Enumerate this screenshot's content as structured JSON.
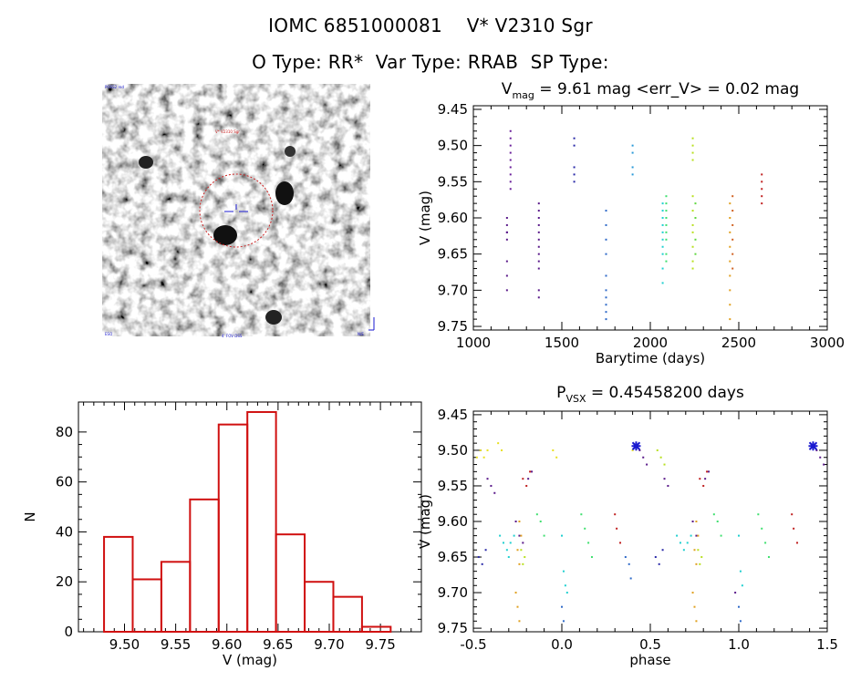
{
  "header": {
    "line1_id": "IOMC 6851000081",
    "line1_name": "V* V2310 Sgr",
    "line2": "O Type: RR*  Var Type: RRAB  SP Type:"
  },
  "image_panel": {
    "corner_tl": "POSS2 red",
    "corner_bl": "ESO",
    "label_top": "V* V2310 Sgr",
    "label_bottom": "4' FOV DSS",
    "corner_br": "N/E"
  },
  "colors": {
    "axis": "#000000",
    "histogram": "#d01010",
    "circle": "#cc2222",
    "star_marker": "#1a1ad0"
  },
  "chart_data": [
    {
      "type": "scatter",
      "title_main": "V",
      "title_sub": "mag",
      "title_rest": " = 9.61 mag <err_V> = 0.02 mag",
      "xlabel": "Barytime (days)",
      "ylabel": "V (mag)",
      "xlim": [
        1000,
        3000
      ],
      "ylim": [
        9.755,
        9.445
      ],
      "xticks": [
        1000,
        1500,
        2000,
        2500,
        3000
      ],
      "yticks": [
        9.45,
        9.5,
        9.55,
        9.6,
        9.65,
        9.7,
        9.75
      ],
      "clusters": [
        {
          "x": 1190,
          "color": "#5a1a8a",
          "values": [
            9.6,
            9.61,
            9.62,
            9.63,
            9.66,
            9.68,
            9.7,
            9.62
          ]
        },
        {
          "x": 1210,
          "color": "#6a1f9a",
          "values": [
            9.48,
            9.49,
            9.5,
            9.51,
            9.52,
            9.53,
            9.54,
            9.55,
            9.56
          ]
        },
        {
          "x": 1370,
          "color": "#5a1a8a",
          "values": [
            9.58,
            9.59,
            9.6,
            9.61,
            9.62,
            9.63,
            9.64,
            9.65,
            9.66,
            9.67,
            9.7,
            9.71
          ]
        },
        {
          "x": 1570,
          "color": "#2a2aa8",
          "values": [
            9.49,
            9.5,
            9.53,
            9.54,
            9.55
          ]
        },
        {
          "x": 1750,
          "color": "#2f6ac8",
          "values": [
            9.59,
            9.61,
            9.63,
            9.65,
            9.68,
            9.7,
            9.71,
            9.72,
            9.73,
            9.74
          ]
        },
        {
          "x": 1900,
          "color": "#2a9ad8",
          "values": [
            9.5,
            9.51,
            9.53,
            9.54
          ]
        },
        {
          "x": 2070,
          "color": "#20d0d0",
          "values": [
            9.58,
            9.59,
            9.6,
            9.61,
            9.62,
            9.63,
            9.64,
            9.65,
            9.67,
            9.69
          ]
        },
        {
          "x": 2090,
          "color": "#40e070",
          "values": [
            9.57,
            9.58,
            9.59,
            9.6,
            9.61,
            9.62,
            9.63,
            9.65,
            9.66
          ]
        },
        {
          "x": 2240,
          "color": "#b8e020",
          "values": [
            9.49,
            9.5,
            9.51,
            9.52,
            9.57,
            9.59,
            9.61,
            9.62,
            9.64,
            9.66,
            9.67
          ]
        },
        {
          "x": 2255,
          "color": "#60d840",
          "values": [
            9.58,
            9.6,
            9.63,
            9.65
          ]
        },
        {
          "x": 2450,
          "color": "#e0a020",
          "values": [
            9.58,
            9.6,
            9.62,
            9.64,
            9.66,
            9.68,
            9.7,
            9.72,
            9.74
          ]
        },
        {
          "x": 2465,
          "color": "#d06020",
          "values": [
            9.57,
            9.59,
            9.61,
            9.63,
            9.65,
            9.67
          ]
        },
        {
          "x": 2630,
          "color": "#c02020",
          "values": [
            9.54,
            9.55,
            9.56,
            9.57,
            9.58
          ]
        }
      ]
    },
    {
      "type": "bar",
      "title": "",
      "xlabel": "V (mag)",
      "ylabel": "N",
      "xlim": [
        9.455,
        9.79
      ],
      "ylim": [
        0,
        92
      ],
      "xticks": [
        9.5,
        9.55,
        9.6,
        9.65,
        9.7,
        9.75
      ],
      "yticks": [
        0,
        20,
        40,
        60,
        80
      ],
      "bin_edges": [
        9.48,
        9.508,
        9.536,
        9.564,
        9.592,
        9.62,
        9.648,
        9.676,
        9.704,
        9.732,
        9.76
      ],
      "counts": [
        38,
        21,
        28,
        53,
        83,
        88,
        39,
        20,
        14,
        2
      ]
    },
    {
      "type": "scatter",
      "title_main": "P",
      "title_sub": "VSX",
      "title_rest": " = 0.45458200 days",
      "xlabel": "phase",
      "ylabel": "V (mag)",
      "xlim": [
        -0.5,
        1.5
      ],
      "ylim": [
        9.755,
        9.445
      ],
      "xticks": [
        -0.5,
        0.0,
        0.5,
        1.0,
        1.5
      ],
      "yticks": [
        9.45,
        9.5,
        9.55,
        9.6,
        9.65,
        9.7,
        9.75
      ],
      "marker": {
        "phase": 0.42,
        "value": 9.494
      },
      "groups": [
        {
          "color": "#e8e020",
          "points": [
            [
              -0.48,
              9.51
            ],
            [
              -0.46,
              9.5
            ],
            [
              -0.44,
              9.51
            ],
            [
              -0.42,
              9.5
            ],
            [
              -0.36,
              9.49
            ],
            [
              -0.34,
              9.5
            ],
            [
              -0.05,
              9.5
            ],
            [
              -0.03,
              9.51
            ],
            [
              0.4,
              9.5
            ],
            [
              0.42,
              9.49
            ]
          ]
        },
        {
          "color": "#5a1a8a",
          "points": [
            [
              -0.42,
              9.54
            ],
            [
              -0.4,
              9.55
            ],
            [
              -0.38,
              9.56
            ],
            [
              -0.26,
              9.6
            ],
            [
              -0.24,
              9.62
            ],
            [
              -0.22,
              9.63
            ],
            [
              -0.19,
              9.54
            ],
            [
              -0.17,
              9.53
            ],
            [
              0.44,
              9.5
            ],
            [
              0.46,
              9.51
            ],
            [
              0.48,
              9.52
            ],
            [
              0.58,
              9.54
            ],
            [
              0.6,
              9.55
            ],
            [
              0.74,
              9.6
            ],
            [
              0.76,
              9.62
            ],
            [
              0.81,
              9.54
            ],
            [
              0.83,
              9.53
            ],
            [
              0.98,
              9.7
            ],
            [
              1.44,
              9.5
            ],
            [
              1.46,
              9.51
            ],
            [
              1.48,
              9.52
            ]
          ]
        },
        {
          "color": "#c02020",
          "points": [
            [
              -0.22,
              9.54
            ],
            [
              -0.2,
              9.55
            ],
            [
              -0.18,
              9.53
            ],
            [
              0.3,
              9.59
            ],
            [
              0.31,
              9.61
            ],
            [
              0.33,
              9.63
            ],
            [
              0.78,
              9.54
            ],
            [
              0.8,
              9.55
            ],
            [
              0.82,
              9.53
            ],
            [
              1.3,
              9.59
            ],
            [
              1.31,
              9.61
            ],
            [
              1.33,
              9.63
            ]
          ]
        },
        {
          "color": "#e0a020",
          "points": [
            [
              -0.24,
              9.6
            ],
            [
              -0.23,
              9.62
            ],
            [
              -0.25,
              9.64
            ],
            [
              -0.24,
              9.66
            ],
            [
              -0.26,
              9.7
            ],
            [
              -0.25,
              9.72
            ],
            [
              -0.24,
              9.74
            ],
            [
              0.76,
              9.6
            ],
            [
              0.77,
              9.62
            ],
            [
              0.75,
              9.64
            ],
            [
              0.76,
              9.66
            ],
            [
              0.74,
              9.7
            ],
            [
              0.75,
              9.72
            ],
            [
              0.76,
              9.74
            ]
          ]
        },
        {
          "color": "#20d0d0",
          "points": [
            [
              -0.35,
              9.62
            ],
            [
              -0.33,
              9.63
            ],
            [
              -0.31,
              9.64
            ],
            [
              -0.29,
              9.63
            ],
            [
              -0.27,
              9.62
            ],
            [
              -0.3,
              9.65
            ],
            [
              0.0,
              9.62
            ],
            [
              0.01,
              9.67
            ],
            [
              0.02,
              9.69
            ],
            [
              0.03,
              9.7
            ],
            [
              0.65,
              9.62
            ],
            [
              0.67,
              9.63
            ],
            [
              0.69,
              9.64
            ],
            [
              0.71,
              9.63
            ],
            [
              0.73,
              9.62
            ],
            [
              1.0,
              9.62
            ],
            [
              1.01,
              9.67
            ],
            [
              1.02,
              9.69
            ]
          ]
        },
        {
          "color": "#40e070",
          "points": [
            [
              -0.14,
              9.59
            ],
            [
              -0.12,
              9.6
            ],
            [
              -0.1,
              9.62
            ],
            [
              0.11,
              9.59
            ],
            [
              0.13,
              9.61
            ],
            [
              0.15,
              9.63
            ],
            [
              0.17,
              9.65
            ],
            [
              0.86,
              9.59
            ],
            [
              0.88,
              9.6
            ],
            [
              0.9,
              9.62
            ],
            [
              1.11,
              9.59
            ],
            [
              1.13,
              9.61
            ],
            [
              1.15,
              9.63
            ],
            [
              1.17,
              9.65
            ]
          ]
        },
        {
          "color": "#b8e020",
          "points": [
            [
              -0.23,
              9.64
            ],
            [
              -0.22,
              9.66
            ],
            [
              -0.21,
              9.65
            ],
            [
              0.54,
              9.5
            ],
            [
              0.56,
              9.51
            ],
            [
              0.58,
              9.52
            ],
            [
              0.77,
              9.64
            ],
            [
              0.78,
              9.66
            ],
            [
              0.79,
              9.65
            ]
          ]
        },
        {
          "color": "#2f6ac8",
          "points": [
            [
              0.0,
              9.72
            ],
            [
              0.01,
              9.74
            ],
            [
              0.36,
              9.65
            ],
            [
              0.38,
              9.66
            ],
            [
              0.39,
              9.68
            ],
            [
              1.0,
              9.72
            ],
            [
              1.01,
              9.74
            ]
          ]
        },
        {
          "color": "#2a2aa8",
          "points": [
            [
              -0.47,
              9.65
            ],
            [
              -0.45,
              9.66
            ],
            [
              -0.43,
              9.64
            ],
            [
              0.53,
              9.65
            ],
            [
              0.55,
              9.66
            ],
            [
              0.57,
              9.64
            ]
          ]
        }
      ]
    }
  ]
}
